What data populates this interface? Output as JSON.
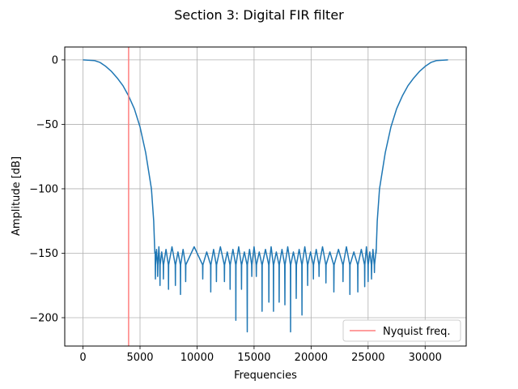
{
  "chart_data": {
    "type": "line",
    "title": "Section 3: Digital FIR filter",
    "xlabel": "Frequencies",
    "ylabel": "Amplitude [dB]",
    "xlim": [
      -1600,
      33600
    ],
    "ylim": [
      -222,
      10
    ],
    "xticks": [
      0,
      5000,
      10000,
      15000,
      20000,
      25000,
      30000
    ],
    "yticks": [
      0,
      -50,
      -100,
      -150,
      -200
    ],
    "grid": true,
    "legend": {
      "position": "bottom-right",
      "entries": [
        "Nyquist freq."
      ]
    },
    "series": [
      {
        "color": "#1f77b4",
        "x": [
          0,
          1000,
          1500,
          2000,
          2500,
          3000,
          3500,
          4000,
          4500,
          5000,
          5500,
          6000,
          6200,
          6300
        ],
        "y": [
          0,
          -0.5,
          -2,
          -5,
          -9,
          -14,
          -20,
          -28,
          -38,
          -52,
          -72,
          -100,
          -125,
          -150
        ],
        "stopband": {
          "x_range": [
            6300,
            25700
          ],
          "nominal": -147,
          "notch_x": [
            6350,
            6550,
            6750,
            7050,
            7500,
            8100,
            8550,
            9000,
            10500,
            11200,
            11700,
            12400,
            12900,
            13400,
            13900,
            14400,
            14800,
            15200,
            15700,
            16300,
            16700,
            17200,
            17700,
            18200,
            18700,
            19200,
            19700,
            20200,
            20700,
            21300,
            22000,
            22800,
            23400,
            24100,
            24700,
            25000,
            25300,
            25550
          ],
          "notch_y": [
            -170,
            -168,
            -175,
            -170,
            -178,
            -175,
            -182,
            -172,
            -170,
            -180,
            -172,
            -172,
            -178,
            -202,
            -178,
            -211,
            -168,
            -168,
            -195,
            -188,
            -195,
            -188,
            -190,
            -211,
            -185,
            -198,
            -175,
            -170,
            -168,
            -173,
            -180,
            -172,
            -182,
            -180,
            -176,
            -172,
            -170,
            -165
          ]
        },
        "mirror_center": 16000
      }
    ],
    "vline": {
      "x": 4000,
      "color": "#ff7f7f",
      "label": "Nyquist freq."
    }
  }
}
